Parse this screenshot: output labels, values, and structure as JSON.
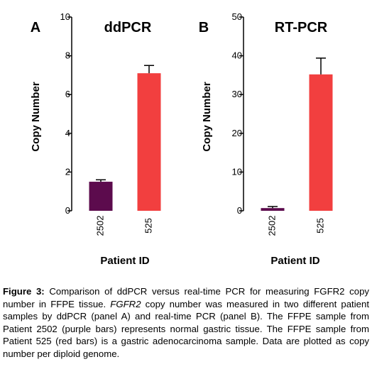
{
  "chart_data": [
    {
      "type": "bar",
      "panel_label": "A",
      "title": "ddPCR",
      "ylabel": "Copy Number",
      "xlabel": "Patient ID",
      "ylim": [
        0,
        10
      ],
      "yticks": [
        0,
        2,
        4,
        6,
        8,
        10
      ],
      "categories": [
        "2502",
        "525"
      ],
      "values": [
        1.5,
        7.1
      ],
      "errors": [
        0.1,
        0.4
      ],
      "colors": [
        "#5c0b4d",
        "#f23f3f"
      ]
    },
    {
      "type": "bar",
      "panel_label": "B",
      "title": "RT-PCR",
      "ylabel": "Copy Number",
      "xlabel": "Patient ID",
      "ylim": [
        0,
        50
      ],
      "yticks": [
        0,
        10,
        20,
        30,
        40,
        50
      ],
      "categories": [
        "2502",
        "525"
      ],
      "values": [
        0.7,
        35.2
      ],
      "errors": [
        0.4,
        4.2
      ],
      "colors": [
        "#5c0b4d",
        "#f23f3f"
      ]
    }
  ],
  "caption": {
    "label": "Figure 3:",
    "text_1": "Comparison of ddPCR versus real-time PCR for measuring FGFR2 copy number in FFPE tissue. ",
    "italic_gene": "FGFR2",
    "text_2": " copy number was measured in two different patient samples by ddPCR (panel A) and real-time PCR (panel B). The FFPE sample from Patient 2502 (purple bars) represents normal gastric tissue. The FFPE sample from Patient 525 (red bars) is a gastric adenocarcinoma sample. Data are plotted as copy number per diploid genome."
  }
}
